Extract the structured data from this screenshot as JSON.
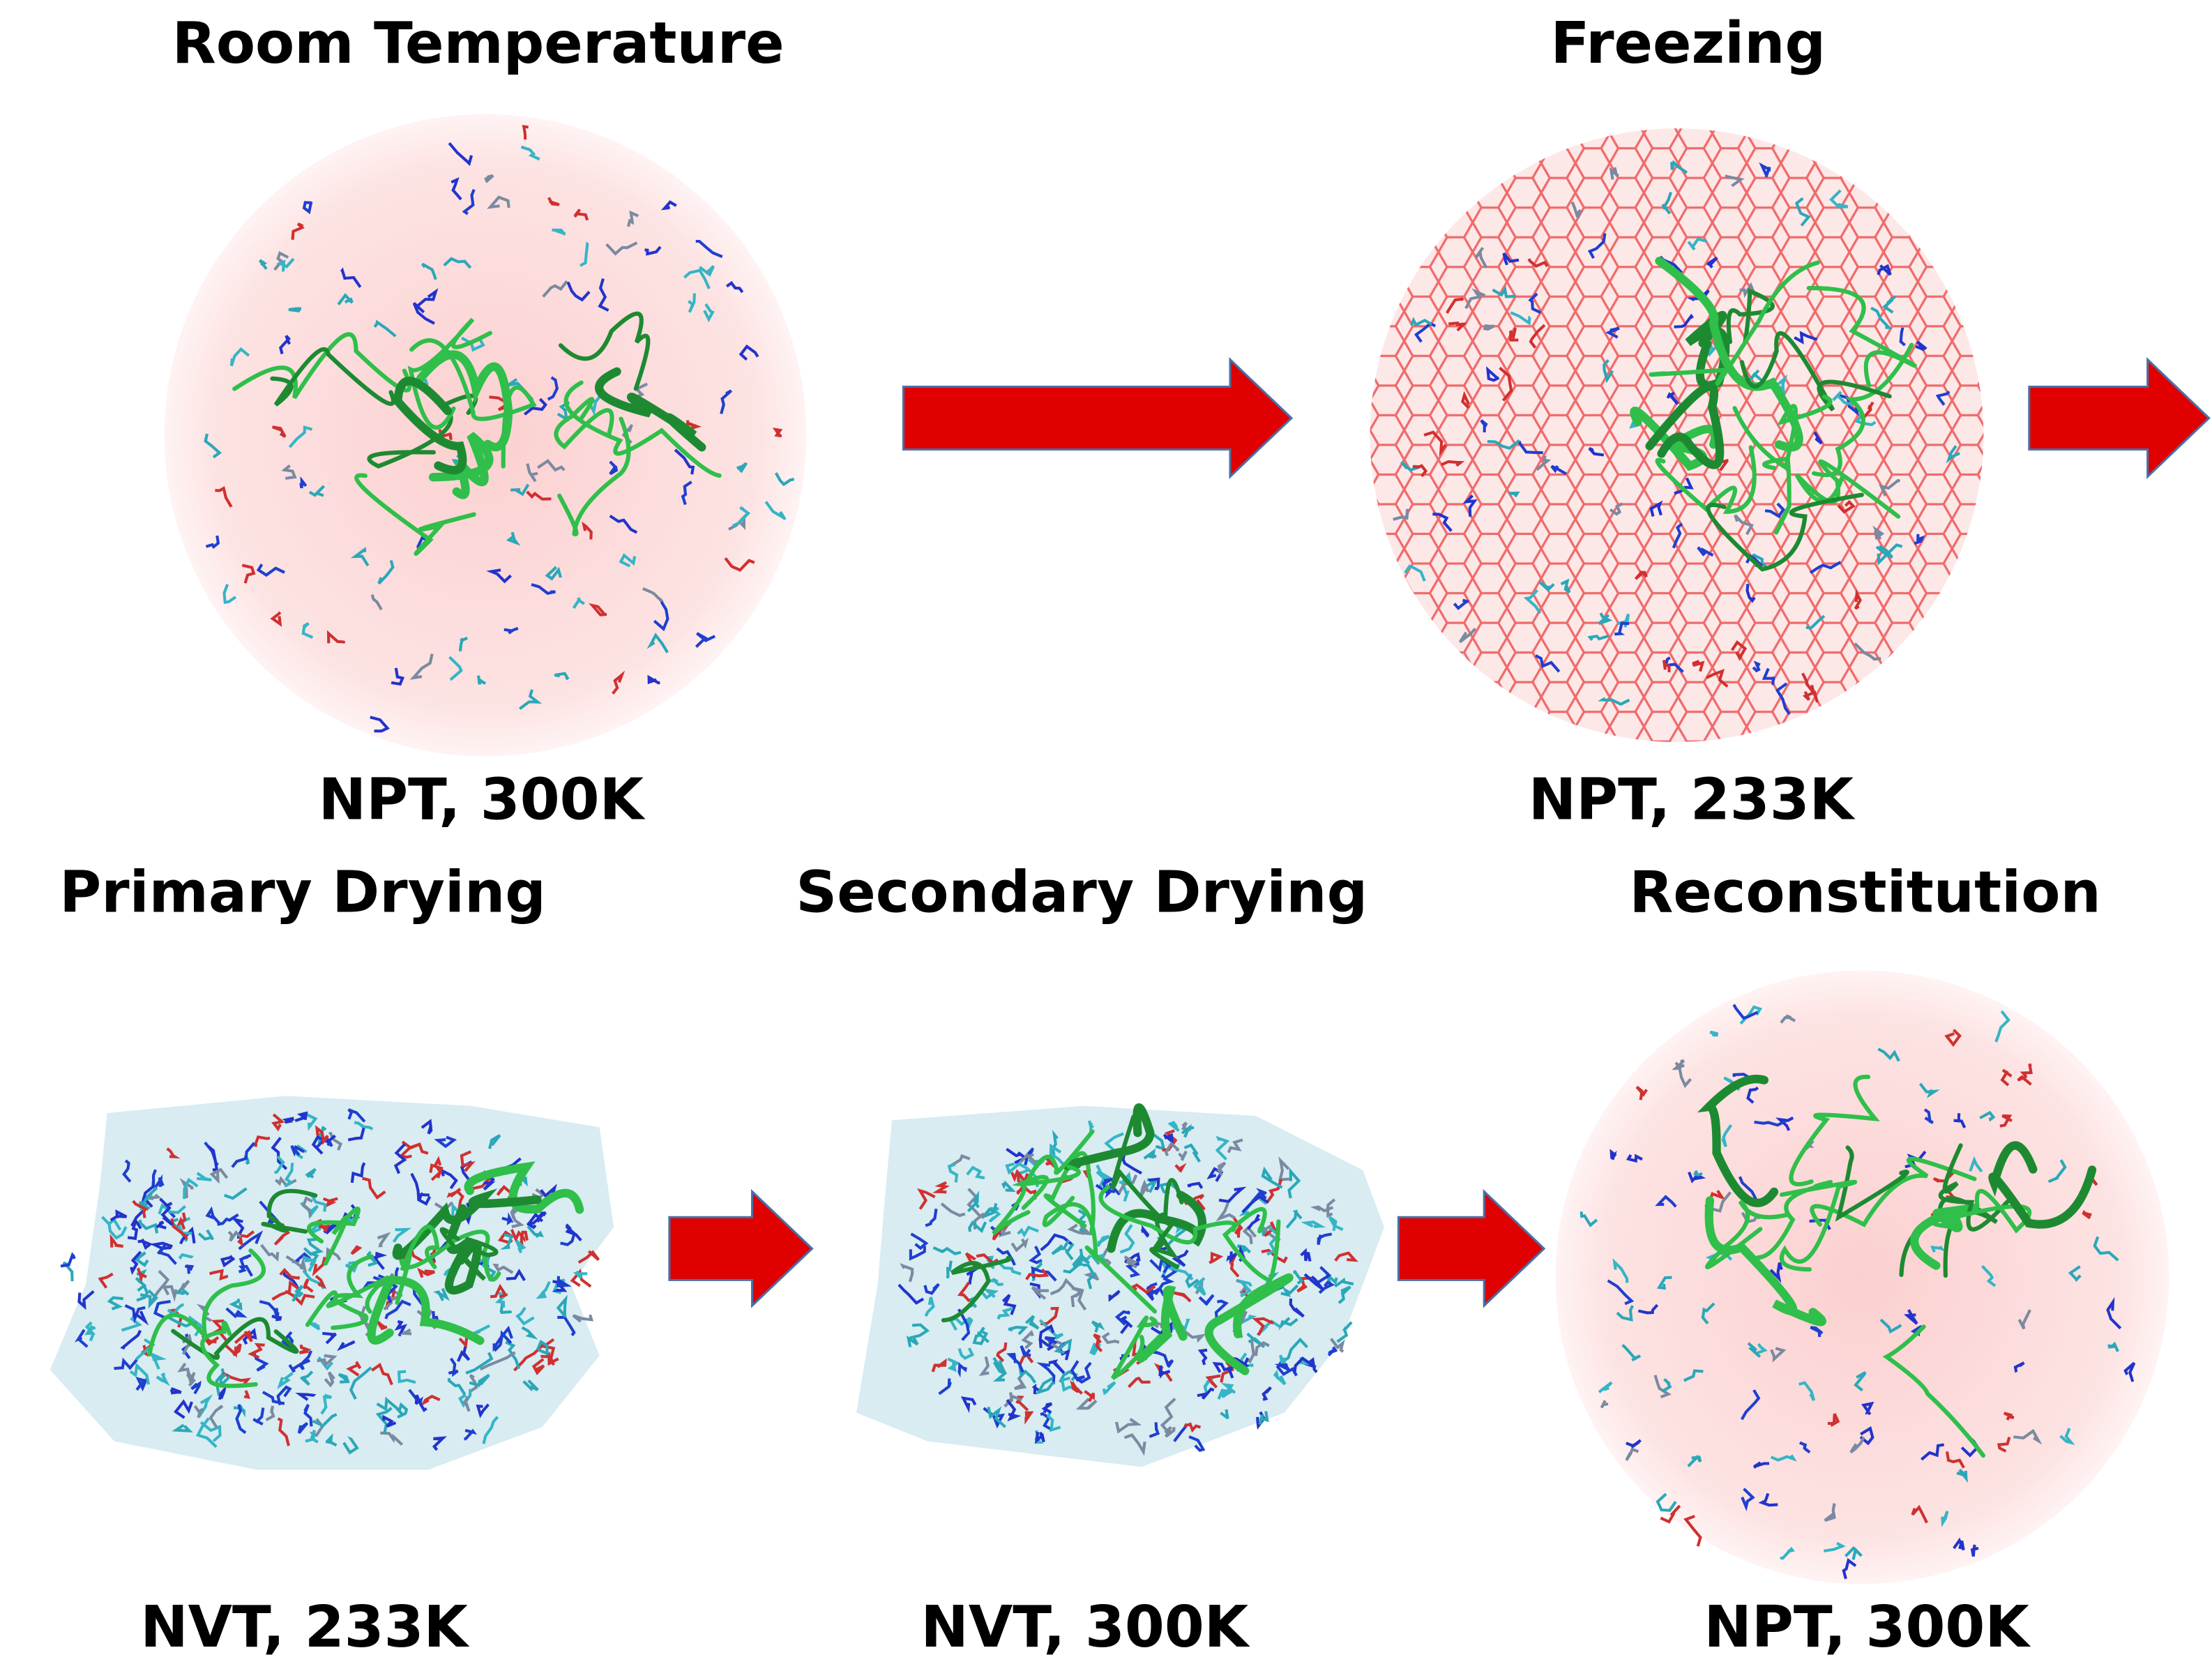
{
  "stages": [
    {
      "title": "Room Temperature",
      "condition": "NPT, 300K"
    },
    {
      "title": "Freezing",
      "condition": "NPT, 233K"
    },
    {
      "title": "Primary Drying",
      "condition": "NVT, 233K"
    },
    {
      "title": "Secondary Drying",
      "condition": "NVT, 300K"
    },
    {
      "title": "Reconstitution",
      "condition": "NPT, 300K"
    }
  ]
}
